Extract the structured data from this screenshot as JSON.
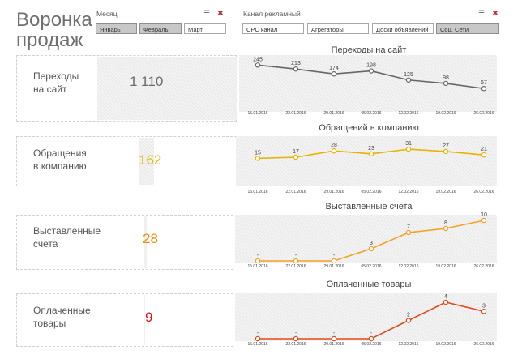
{
  "title_line1": "Воронка",
  "title_line2": "продаж",
  "month_slicer": {
    "label": "Месяц",
    "items": [
      {
        "label": "Январь",
        "selected": true
      },
      {
        "label": "Февраль",
        "selected": true
      },
      {
        "label": "Март",
        "selected": false
      }
    ]
  },
  "channel_slicer": {
    "label": "Канал рекламный",
    "items": [
      {
        "label": "CPC канал",
        "selected": false
      },
      {
        "label": "Агрегаторы",
        "selected": false
      },
      {
        "label": "Доски объявлений",
        "selected": false
      },
      {
        "label": "Соц. Сети",
        "selected": true
      }
    ]
  },
  "icons": {
    "multiselect": "multiselect-icon",
    "clear_filter": "clear-filter-icon"
  },
  "kpis": [
    {
      "label_line1": "Переходы",
      "label_line2": "на сайт",
      "value": "1 110",
      "color": "#6b6b6b",
      "fill_fraction": 1.0
    },
    {
      "label_line1": "Обращения",
      "label_line2": "в компанию",
      "value": "162",
      "color": "#e8b400",
      "fill_fraction": 0.146
    },
    {
      "label_line1": "Выставленные",
      "label_line2": "счета",
      "value": "28",
      "color": "#ef8c00",
      "fill_fraction": 0.025
    },
    {
      "label_line1": "Оплаченные",
      "label_line2": "товары",
      "value": "9",
      "color": "#e01010",
      "fill_fraction": 0.008
    }
  ],
  "chart_data": [
    {
      "type": "line",
      "title": "Переходы на сайт",
      "x": [
        "15.01.2016",
        "22.01.2016",
        "29.01.2016",
        "05.02.2016",
        "12.02.2016",
        "19.02.2016",
        "26.02.2016"
      ],
      "series": [
        {
          "values": [
            245,
            213,
            174,
            198,
            125,
            98,
            57
          ],
          "labels": [
            "245",
            "213",
            "174",
            "198",
            "125",
            "98",
            "57"
          ],
          "color": "#666666"
        }
      ],
      "ylim": [
        0,
        260
      ],
      "grid": false
    },
    {
      "type": "line",
      "title": "Обращений в компанию",
      "x": [
        "15.01.2016",
        "22.01.2016",
        "29.01.2016",
        "05.02.2016",
        "12.02.2016",
        "19.02.2016",
        "26.02.2016"
      ],
      "series": [
        {
          "values": [
            15,
            17,
            28,
            23,
            31,
            27,
            21
          ],
          "labels": [
            "15",
            "17",
            "28",
            "23",
            "31",
            "27",
            "21"
          ],
          "color": "#e8b400"
        }
      ],
      "ylim": [
        0,
        34
      ],
      "grid": false
    },
    {
      "type": "line",
      "title": "Выставленные счета",
      "x": [
        "15.01.2016",
        "22.01.2016",
        "29.01.2016",
        "05.02.2016",
        "12.02.2016",
        "19.02.2016",
        "26.02.2016"
      ],
      "series": [
        {
          "values": [
            0,
            0,
            0,
            3,
            7,
            8,
            10
          ],
          "labels": [
            "-",
            "-",
            "-",
            "3",
            "7",
            "8",
            "10"
          ],
          "color": "#f5a022"
        }
      ],
      "ylim": [
        0,
        10
      ],
      "grid": false
    },
    {
      "type": "line",
      "title": "Оплаченные товары",
      "x": [
        "15.01.2016",
        "22.01.2016",
        "29.01.2016",
        "05.02.2016",
        "12.02.2016",
        "19.02.2016",
        "26.02.2016"
      ],
      "series": [
        {
          "values": [
            0,
            0,
            0,
            0,
            2,
            4,
            3
          ],
          "labels": [
            "-",
            "-",
            "-",
            "-",
            "2",
            "4",
            "3"
          ],
          "color": "#e04a1a"
        }
      ],
      "ylim": [
        0,
        4
      ],
      "grid": false
    }
  ]
}
